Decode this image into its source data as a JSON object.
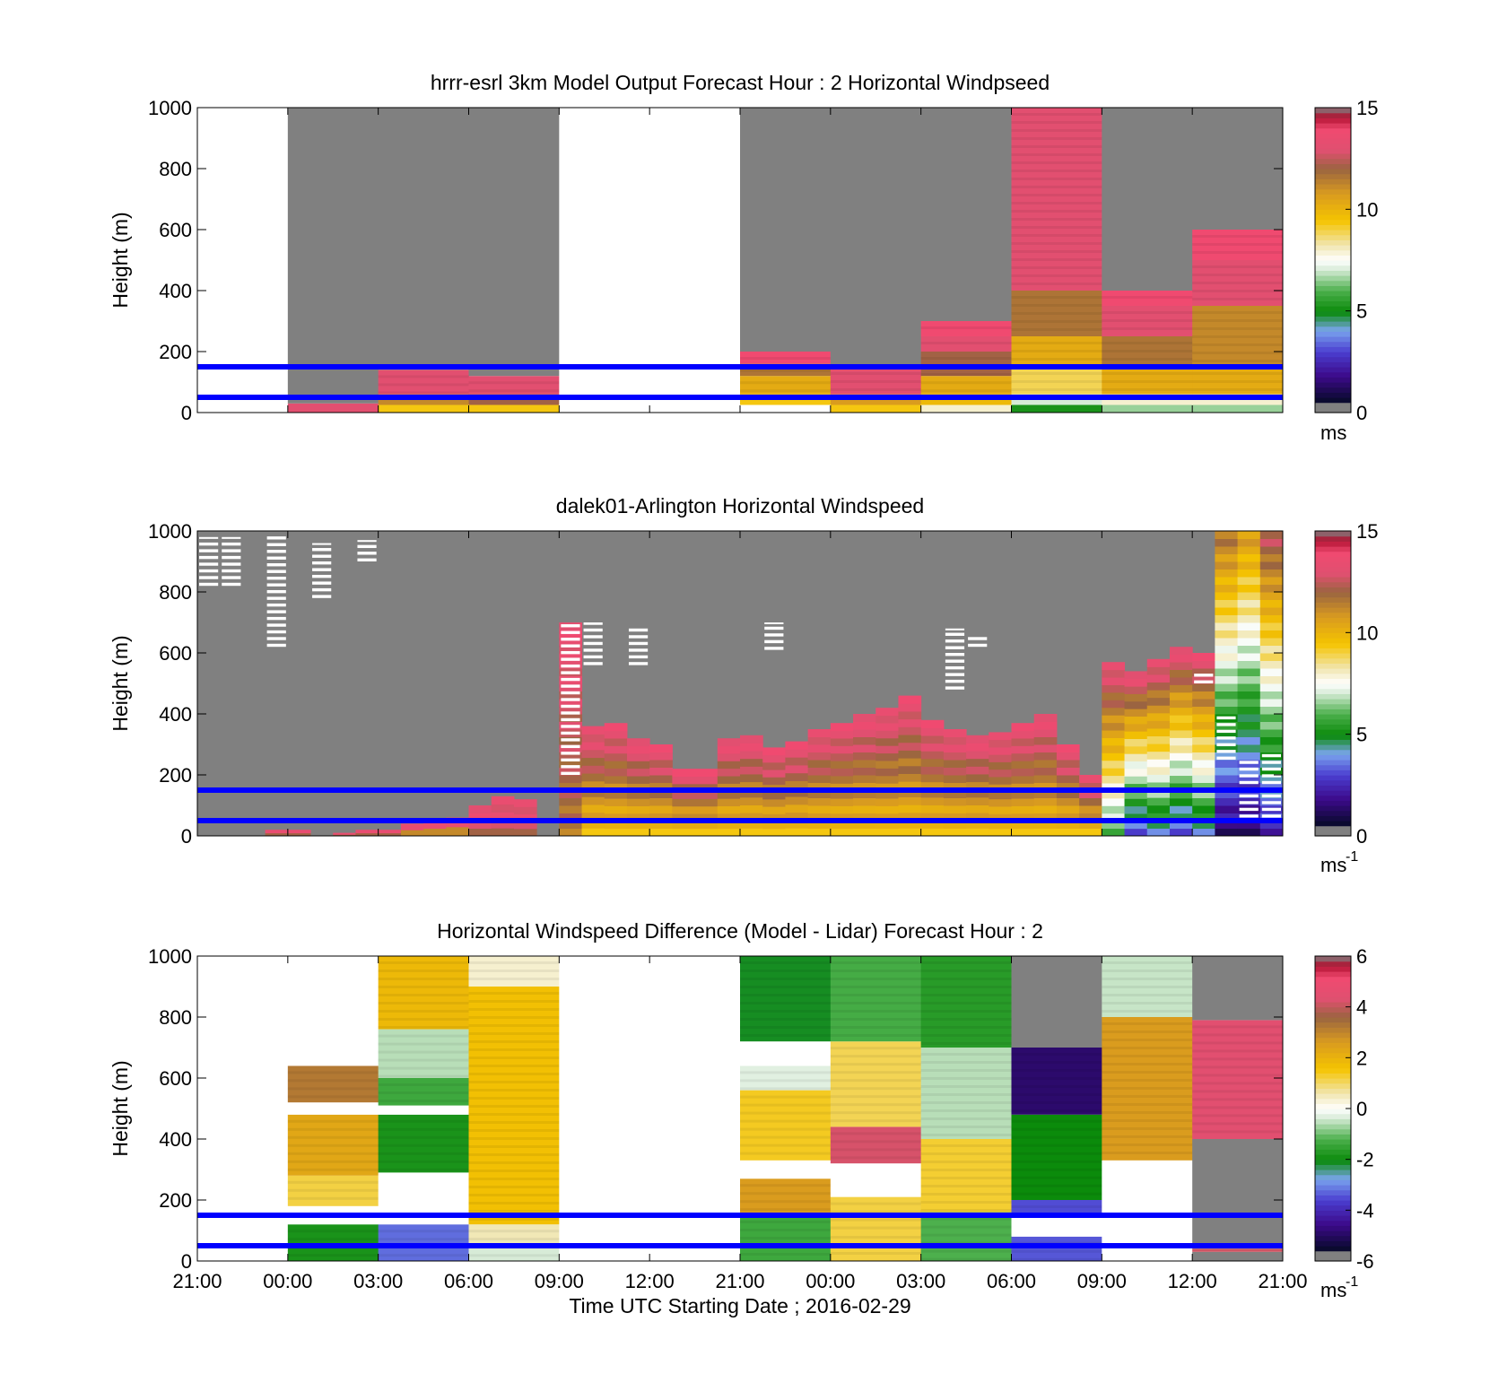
{
  "figure": {
    "x_ticks": [
      "21:00",
      "00:00",
      "03:00",
      "06:00",
      "09:00",
      "12:00",
      "21:00",
      "00:00",
      "03:00",
      "06:00",
      "09:00",
      "12:00",
      "21:00"
    ],
    "x_axis_label": "Time UTC  Starting Date ; 2016-02-29",
    "y_axis_label": "Height (m)",
    "reference_lines_m": [
      50,
      150
    ],
    "reference_line_color": "#0000ff",
    "missing_color": "#808080",
    "gap_color": "#ffffff"
  },
  "chart_data": [
    {
      "type": "heatmap",
      "title": "hrrr-esrl 3km Model Output   Forecast Hour : 2 Horizontal Windpseed",
      "ylabel": "Height (m)",
      "ylim": [
        0,
        1000
      ],
      "y_ticks": [
        0,
        200,
        400,
        600,
        800,
        1000
      ],
      "columns": 12,
      "colorbar": {
        "ticks": [
          0,
          5,
          10,
          15
        ],
        "range": [
          0,
          15
        ],
        "unit": "ms"
      },
      "cells": [
        {
          "col": 0,
          "y0": 0,
          "y1": 1000,
          "v": null,
          "missing": false
        },
        {
          "col": 1,
          "y0": 0,
          "y1": 30,
          "v": 13.5
        },
        {
          "col": 1,
          "y0": 30,
          "y1": 1000,
          "v": null,
          "missing": true
        },
        {
          "col": 2,
          "y0": 0,
          "y1": 25,
          "v": 9.5
        },
        {
          "col": 2,
          "y0": 25,
          "y1": 60,
          "v": 11.5
        },
        {
          "col": 2,
          "y0": 60,
          "y1": 140,
          "v": 13.5
        },
        {
          "col": 2,
          "y0": 140,
          "y1": 1000,
          "v": null,
          "missing": true
        },
        {
          "col": 3,
          "y0": 0,
          "y1": 25,
          "v": 9.5
        },
        {
          "col": 3,
          "y0": 25,
          "y1": 60,
          "v": 12.5
        },
        {
          "col": 3,
          "y0": 60,
          "y1": 120,
          "v": 13.5
        },
        {
          "col": 3,
          "y0": 120,
          "y1": 1000,
          "v": null,
          "missing": true
        },
        {
          "col": 4,
          "y0": 0,
          "y1": 1000,
          "v": null,
          "missing": false
        },
        {
          "col": 5,
          "y0": 0,
          "y1": 1000,
          "v": null,
          "missing": false
        },
        {
          "col": 6,
          "y0": 0,
          "y1": 25,
          "v": 7.5
        },
        {
          "col": 6,
          "y0": 25,
          "y1": 60,
          "v": 9.5
        },
        {
          "col": 6,
          "y0": 60,
          "y1": 120,
          "v": 10.5
        },
        {
          "col": 6,
          "y0": 120,
          "y1": 160,
          "v": 12
        },
        {
          "col": 6,
          "y0": 160,
          "y1": 200,
          "v": 14.5
        },
        {
          "col": 6,
          "y0": 200,
          "y1": 1000,
          "v": null,
          "missing": true
        },
        {
          "col": 7,
          "y0": 0,
          "y1": 25,
          "v": 9.5
        },
        {
          "col": 7,
          "y0": 25,
          "y1": 60,
          "v": 11
        },
        {
          "col": 7,
          "y0": 60,
          "y1": 150,
          "v": 13.5
        },
        {
          "col": 7,
          "y0": 150,
          "y1": 1000,
          "v": null,
          "missing": true
        },
        {
          "col": 8,
          "y0": 0,
          "y1": 25,
          "v": 8
        },
        {
          "col": 8,
          "y0": 25,
          "y1": 60,
          "v": 10
        },
        {
          "col": 8,
          "y0": 60,
          "y1": 120,
          "v": 10.5
        },
        {
          "col": 8,
          "y0": 120,
          "y1": 200,
          "v": 12.5
        },
        {
          "col": 8,
          "y0": 200,
          "y1": 250,
          "v": 13.5
        },
        {
          "col": 8,
          "y0": 250,
          "y1": 300,
          "v": 14.5
        },
        {
          "col": 8,
          "y0": 300,
          "y1": 1000,
          "v": null,
          "missing": true
        },
        {
          "col": 9,
          "y0": 0,
          "y1": 25,
          "v": 5
        },
        {
          "col": 9,
          "y0": 25,
          "y1": 60,
          "v": 7
        },
        {
          "col": 9,
          "y0": 60,
          "y1": 150,
          "v": 9
        },
        {
          "col": 9,
          "y0": 150,
          "y1": 250,
          "v": 10.5
        },
        {
          "col": 9,
          "y0": 250,
          "y1": 400,
          "v": 12
        },
        {
          "col": 9,
          "y0": 400,
          "y1": 1000,
          "v": 13.5
        },
        {
          "col": 10,
          "y0": 0,
          "y1": 25,
          "v": 6.5
        },
        {
          "col": 10,
          "y0": 25,
          "y1": 60,
          "v": 8
        },
        {
          "col": 10,
          "y0": 60,
          "y1": 150,
          "v": 10.5
        },
        {
          "col": 10,
          "y0": 150,
          "y1": 250,
          "v": 12
        },
        {
          "col": 10,
          "y0": 250,
          "y1": 350,
          "v": 13.5
        },
        {
          "col": 10,
          "y0": 350,
          "y1": 400,
          "v": 14.5
        },
        {
          "col": 10,
          "y0": 400,
          "y1": 1000,
          "v": null,
          "missing": true
        },
        {
          "col": 11,
          "y0": 0,
          "y1": 25,
          "v": 6.5
        },
        {
          "col": 11,
          "y0": 25,
          "y1": 60,
          "v": 8
        },
        {
          "col": 11,
          "y0": 60,
          "y1": 150,
          "v": 10.5
        },
        {
          "col": 11,
          "y0": 150,
          "y1": 350,
          "v": 11.5
        },
        {
          "col": 11,
          "y0": 350,
          "y1": 500,
          "v": 13.5
        },
        {
          "col": 11,
          "y0": 500,
          "y1": 600,
          "v": 14.5
        },
        {
          "col": 11,
          "y0": 600,
          "y1": 1000,
          "v": null,
          "missing": true
        }
      ]
    },
    {
      "type": "heatmap",
      "title": "dalek01-Arlington  Horizontal Windspeed",
      "ylabel": "Height (m)",
      "ylim": [
        0,
        1000
      ],
      "y_ticks": [
        0,
        200,
        400,
        600,
        800,
        1000
      ],
      "columns": 48,
      "colorbar": {
        "ticks": [
          0,
          5,
          10,
          15
        ],
        "range": [
          0,
          15
        ],
        "unit": "ms",
        "unit_exponent": "-1"
      },
      "profile_tops_m": [
        0,
        0,
        0,
        20,
        20,
        0,
        10,
        20,
        20,
        40,
        50,
        60,
        100,
        130,
        120,
        0,
        700,
        360,
        370,
        320,
        300,
        220,
        220,
        320,
        330,
        290,
        310,
        350,
        370,
        400,
        420,
        460,
        380,
        350,
        330,
        340,
        370,
        400,
        300,
        200,
        570,
        540,
        580,
        620,
        600,
        1000,
        1000,
        1000
      ],
      "profile_base_value": [
        0,
        0,
        0,
        13,
        13,
        0,
        13,
        13,
        13,
        12,
        12,
        12,
        13,
        13,
        13,
        0,
        12,
        10,
        10,
        10,
        10,
        10,
        10,
        10,
        10,
        10,
        10,
        10,
        10,
        10,
        10,
        10,
        10,
        10,
        10,
        10,
        10,
        10,
        10,
        10,
        6,
        3,
        4,
        3,
        4,
        1,
        1,
        2
      ],
      "profile_top_value": [
        0,
        0,
        0,
        14,
        14,
        0,
        14,
        14,
        14,
        14,
        14,
        14,
        14,
        14,
        14,
        0,
        14,
        14,
        14,
        14,
        14,
        14,
        14,
        14,
        14,
        14,
        14,
        14,
        14,
        14,
        14,
        14,
        14,
        14,
        14,
        14,
        14,
        14,
        14,
        14,
        14,
        14,
        14,
        14,
        14,
        12,
        11,
        13
      ],
      "missing_patches": [
        {
          "col": 0,
          "y0": 820,
          "y1": 980,
          "kind": "gap"
        },
        {
          "col": 1,
          "y0": 820,
          "y1": 980,
          "kind": "gap"
        },
        {
          "col": 3,
          "y0": 620,
          "y1": 990,
          "kind": "gap"
        },
        {
          "col": 5,
          "y0": 780,
          "y1": 960,
          "kind": "gap"
        },
        {
          "col": 7,
          "y0": 900,
          "y1": 970,
          "kind": "gap"
        },
        {
          "col": 16,
          "y0": 200,
          "y1": 700,
          "kind": "gap"
        },
        {
          "col": 17,
          "y0": 560,
          "y1": 700,
          "kind": "gap"
        },
        {
          "col": 19,
          "y0": 560,
          "y1": 680,
          "kind": "gap"
        },
        {
          "col": 25,
          "y0": 610,
          "y1": 700,
          "kind": "gap"
        },
        {
          "col": 33,
          "y0": 480,
          "y1": 680,
          "kind": "gap"
        },
        {
          "col": 34,
          "y0": 620,
          "y1": 660,
          "kind": "gap"
        },
        {
          "col": 44,
          "y0": 500,
          "y1": 540,
          "kind": "gap"
        },
        {
          "col": 45,
          "y0": 250,
          "y1": 400,
          "kind": "gap"
        },
        {
          "col": 46,
          "y0": 60,
          "y1": 250,
          "kind": "gap"
        },
        {
          "col": 47,
          "y0": 60,
          "y1": 280,
          "kind": "gap"
        }
      ]
    },
    {
      "type": "heatmap",
      "title": "Horizontal Windspeed Difference (Model - Lidar) Forecast Hour : 2",
      "ylabel": "Height (m)",
      "ylim": [
        0,
        1000
      ],
      "y_ticks": [
        0,
        200,
        400,
        600,
        800,
        1000
      ],
      "columns": 12,
      "colorbar": {
        "ticks": [
          -6,
          -4,
          -2,
          0,
          2,
          4,
          6
        ],
        "range": [
          -6,
          6
        ],
        "unit": "ms",
        "unit_exponent": "-1"
      },
      "cells": [
        {
          "col": 0,
          "y0": 0,
          "y1": 1000,
          "v": null,
          "missing": false
        },
        {
          "col": 1,
          "y0": 0,
          "y1": 120,
          "v": -2
        },
        {
          "col": 1,
          "y0": 120,
          "y1": 180,
          "v": null,
          "missing": false
        },
        {
          "col": 1,
          "y0": 180,
          "y1": 280,
          "v": 1.3
        },
        {
          "col": 1,
          "y0": 280,
          "y1": 480,
          "v": 2.5
        },
        {
          "col": 1,
          "y0": 480,
          "y1": 520,
          "v": null,
          "missing": false
        },
        {
          "col": 1,
          "y0": 520,
          "y1": 640,
          "v": 3.5
        },
        {
          "col": 1,
          "y0": 640,
          "y1": 1000,
          "v": null,
          "missing": false
        },
        {
          "col": 2,
          "y0": 0,
          "y1": 120,
          "v": -3.5
        },
        {
          "col": 2,
          "y0": 120,
          "y1": 290,
          "v": null,
          "missing": false
        },
        {
          "col": 2,
          "y0": 290,
          "y1": 480,
          "v": -2
        },
        {
          "col": 2,
          "y0": 480,
          "y1": 510,
          "v": null,
          "missing": false
        },
        {
          "col": 2,
          "y0": 510,
          "y1": 600,
          "v": -1.5
        },
        {
          "col": 2,
          "y0": 600,
          "y1": 760,
          "v": -0.6
        },
        {
          "col": 2,
          "y0": 760,
          "y1": 1000,
          "v": 2
        },
        {
          "col": 3,
          "y0": 0,
          "y1": 40,
          "v": -0.4
        },
        {
          "col": 3,
          "y0": 40,
          "y1": 120,
          "v": 0.6
        },
        {
          "col": 3,
          "y0": 120,
          "y1": 900,
          "v": 1.8
        },
        {
          "col": 3,
          "y0": 900,
          "y1": 1000,
          "v": 0.4
        },
        {
          "col": 4,
          "y0": 0,
          "y1": 1000,
          "v": null,
          "missing": false
        },
        {
          "col": 5,
          "y0": 0,
          "y1": 1000,
          "v": null,
          "missing": false
        },
        {
          "col": 6,
          "y0": 0,
          "y1": 150,
          "v": -1.5
        },
        {
          "col": 6,
          "y0": 150,
          "y1": 270,
          "v": 2.8
        },
        {
          "col": 6,
          "y0": 270,
          "y1": 330,
          "v": null,
          "missing": false
        },
        {
          "col": 6,
          "y0": 330,
          "y1": 560,
          "v": 1.5
        },
        {
          "col": 6,
          "y0": 560,
          "y1": 640,
          "v": -0.3
        },
        {
          "col": 6,
          "y0": 640,
          "y1": 720,
          "v": null,
          "missing": false
        },
        {
          "col": 6,
          "y0": 720,
          "y1": 1000,
          "v": -2.3
        },
        {
          "col": 7,
          "y0": 0,
          "y1": 100,
          "v": 1.3
        },
        {
          "col": 7,
          "y0": 100,
          "y1": 210,
          "v": 1.3
        },
        {
          "col": 7,
          "y0": 210,
          "y1": 320,
          "v": null,
          "missing": false
        },
        {
          "col": 7,
          "y0": 320,
          "y1": 440,
          "v": 4.6
        },
        {
          "col": 7,
          "y0": 440,
          "y1": 720,
          "v": 1.2
        },
        {
          "col": 7,
          "y0": 720,
          "y1": 1000,
          "v": -1.4
        },
        {
          "col": 8,
          "y0": 0,
          "y1": 160,
          "v": -1.3
        },
        {
          "col": 8,
          "y0": 160,
          "y1": 400,
          "v": 1.4
        },
        {
          "col": 8,
          "y0": 400,
          "y1": 700,
          "v": -0.6
        },
        {
          "col": 8,
          "y0": 700,
          "y1": 1000,
          "v": -1.8
        },
        {
          "col": 9,
          "y0": 0,
          "y1": 80,
          "v": -3.7
        },
        {
          "col": 9,
          "y0": 80,
          "y1": 150,
          "v": null,
          "missing": false
        },
        {
          "col": 9,
          "y0": 150,
          "y1": 200,
          "v": -3.8
        },
        {
          "col": 9,
          "y0": 200,
          "y1": 480,
          "v": -2.2
        },
        {
          "col": 9,
          "y0": 480,
          "y1": 700,
          "v": -5.3
        },
        {
          "col": 9,
          "y0": 700,
          "y1": 1000,
          "v": null,
          "missing": true
        },
        {
          "col": 10,
          "y0": 0,
          "y1": 330,
          "v": null,
          "missing": false
        },
        {
          "col": 10,
          "y0": 330,
          "y1": 800,
          "v": 2.8
        },
        {
          "col": 10,
          "y0": 800,
          "y1": 1000,
          "v": -0.5
        },
        {
          "col": 11,
          "y0": 0,
          "y1": 30,
          "v": null,
          "missing": true
        },
        {
          "col": 11,
          "y0": 30,
          "y1": 40,
          "v": 4.5
        },
        {
          "col": 11,
          "y0": 40,
          "y1": 400,
          "v": null,
          "missing": true
        },
        {
          "col": 11,
          "y0": 400,
          "y1": 790,
          "v": 4.8
        },
        {
          "col": 11,
          "y0": 790,
          "y1": 1000,
          "v": null,
          "missing": true
        }
      ]
    }
  ]
}
